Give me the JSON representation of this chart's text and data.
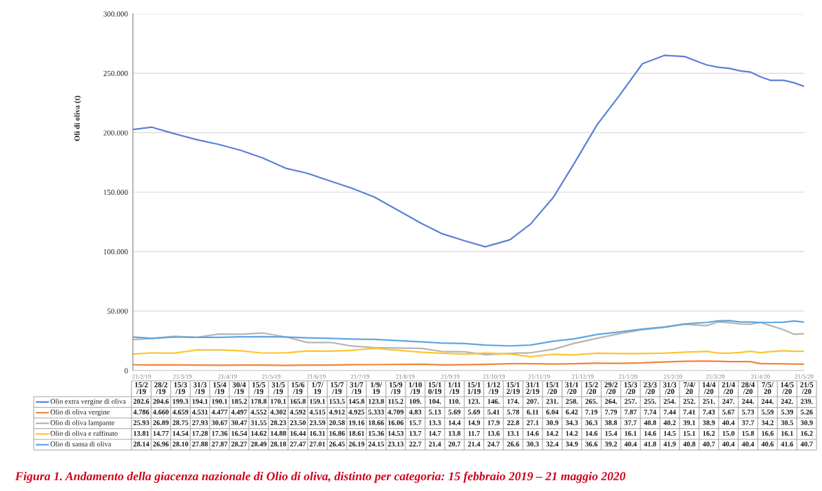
{
  "chart_data": [
    {
      "type": "line",
      "ylabel": "Oli di oliva (t)",
      "annotations": [
        "Figura 1. Andamento della giacenza nazionale di Olio di oliva, distinto per categoria: 15 febbraio 2019 – 21 maggio 2020"
      ],
      "x": [
        "2019-02-15",
        "2019-02-28",
        "2019-03-15",
        "2019-03-31",
        "2019-04-15",
        "2019-04-30",
        "2019-05-15",
        "2019-05-31",
        "2019-06-15",
        "2019-07-01",
        "2019-07-15",
        "2019-07-31",
        "2019-09-01",
        "2019-09-15",
        "2019-10-01",
        "2019-10-15",
        "2019-11-01",
        "2019-11-15",
        "2019-12-01",
        "2019-12-15",
        "2019-12-31",
        "2020-01-15",
        "2020-01-31",
        "2020-02-15",
        "2020-02-29",
        "2020-03-15",
        "2020-03-23",
        "2020-03-31",
        "2020-04-07",
        "2020-04-14",
        "2020-04-21",
        "2020-04-28",
        "2020-05-07",
        "2020-05-14",
        "2020-05-21"
      ],
      "xlim": [
        "2019-02-15",
        "2020-05-21"
      ],
      "xticks": [
        {
          "value": "2019-02-21",
          "label": "21/2/19"
        },
        {
          "value": "2019-03-21",
          "label": "21/3/19"
        },
        {
          "value": "2019-04-21",
          "label": "21/4/19"
        },
        {
          "value": "2019-05-21",
          "label": "21/5/19"
        },
        {
          "value": "2019-06-21",
          "label": "21/6/19"
        },
        {
          "value": "2019-07-21",
          "label": "21/7/19"
        },
        {
          "value": "2019-08-21",
          "label": "21/8/19"
        },
        {
          "value": "2019-09-21",
          "label": "21/9/19"
        },
        {
          "value": "2019-10-21",
          "label": "21/10/19"
        },
        {
          "value": "2019-11-21",
          "label": "21/11/19"
        },
        {
          "value": "2019-12-21",
          "label": "21/12/19"
        },
        {
          "value": "2020-01-21",
          "label": "21/1/20"
        },
        {
          "value": "2020-02-21",
          "label": "21/2/20"
        },
        {
          "value": "2020-03-21",
          "label": "21/3/20"
        },
        {
          "value": "2020-04-21",
          "label": "21/4/20"
        },
        {
          "value": "2020-05-21",
          "label": "21/5/20"
        }
      ],
      "ylim": [
        0,
        300
      ],
      "yticks": [
        0,
        {
          "value": 50,
          "label": "50.000"
        },
        {
          "value": 100,
          "label": "100.000"
        },
        {
          "value": 150,
          "label": "150.000"
        },
        {
          "value": 200,
          "label": "200.000"
        },
        {
          "value": 250,
          "label": "250.000"
        },
        {
          "value": 300,
          "label": "300.000"
        }
      ],
      "grid": "y",
      "series": [
        {
          "color": "#5b7fd8",
          "values": [
            202.6,
            204.6,
            199.3,
            194.1,
            190.1,
            185.2,
            178.8,
            170.1,
            165.8,
            159.1,
            153.5,
            145.8,
            123.8,
            115.2,
            109,
            104,
            110,
            123,
            146,
            174,
            207,
            231,
            258,
            265,
            264,
            257,
            255,
            254,
            252,
            251,
            247,
            244,
            244,
            242,
            239
          ]
        },
        {
          "color": "#f2853a",
          "values": [
            4.786,
            4.66,
            4.659,
            4.531,
            4.477,
            4.497,
            4.552,
            4.302,
            4.592,
            4.515,
            4.912,
            4.925,
            5.333,
            4.709,
            4.83,
            5.13,
            5.69,
            5.69,
            5.41,
            5.78,
            6.11,
            6.04,
            6.42,
            7.19,
            7.79,
            7.87,
            7.74,
            7.44,
            7.41,
            7.43,
            5.67,
            5.73,
            5.59,
            5.39,
            5.26
          ]
        },
        {
          "color": "#b5b5b5",
          "values": [
            25.93,
            26.89,
            28.75,
            27.93,
            30.67,
            30.47,
            31.55,
            28.23,
            23.5,
            23.59,
            20.58,
            19.16,
            18.66,
            16.06,
            15.7,
            13.3,
            14.4,
            14.9,
            17.9,
            22.8,
            27.1,
            30.9,
            34.3,
            36.3,
            38.8,
            37.7,
            40.8,
            40.2,
            39.1,
            38.9,
            40.4,
            37.7,
            34.2,
            30.5,
            30.9
          ]
        },
        {
          "color": "#fbc532",
          "values": [
            13.81,
            14.77,
            14.54,
            17.28,
            17.36,
            16.54,
            14.62,
            14.88,
            16.44,
            16.31,
            16.86,
            18.61,
            15.36,
            14.53,
            13.7,
            14.7,
            13.8,
            11.7,
            13.6,
            13.1,
            14.6,
            14.2,
            14.2,
            14.6,
            15.4,
            16.1,
            14.6,
            14.5,
            15.1,
            16.2,
            15.0,
            15.8,
            16.6,
            16.1,
            16.2
          ]
        },
        {
          "color": "#5ea6e2",
          "values": [
            28.14,
            26.96,
            28.1,
            27.88,
            27.87,
            28.27,
            28.49,
            28.18,
            27.47,
            27.01,
            26.45,
            26.19,
            24.15,
            23.13,
            22.7,
            21.4,
            20.7,
            21.4,
            24.7,
            26.6,
            30.3,
            32.4,
            34.9,
            36.6,
            39.2,
            40.4,
            41.8,
            41.9,
            40.8,
            40.7,
            40.4,
            40.4,
            40.6,
            41.6,
            40.7
          ]
        }
      ]
    },
    {
      "type": "other",
      "legend": "left",
      "categories": [
        "15/2/19",
        "28/2/19",
        "15/3/19",
        "31/3/19",
        "15/4/19",
        "30/4/19",
        "15/5/19",
        "31/5/19",
        "15/6/19",
        "1/7/19",
        "15/7/19",
        "31/7/19",
        "1/9/19",
        "15/9/19",
        "1/10/19",
        "15/10/19",
        "1/11/19",
        "15/11/19",
        "1/12/19",
        "15/12/19",
        "31/12/19",
        "15/1/20",
        "31/1/20",
        "15/2/20",
        "29/2/20",
        "15/3/20",
        "23/3/20",
        "31/3/20",
        "7/4/20",
        "14/4/20",
        "21/4/20",
        "28/4/20",
        "7/5/20",
        "14/5/20",
        "21/5/20"
      ],
      "series": [
        {
          "name": "Olio extra vergine di oliva",
          "color": "#5b7fd8",
          "values": [
            202.6,
            204.6,
            199.3,
            194.1,
            190.1,
            185.2,
            178.8,
            170.1,
            165.8,
            159.1,
            153.5,
            145.8,
            123.8,
            115.2,
            109,
            104,
            110,
            123,
            146,
            174,
            207,
            231,
            258,
            265,
            264,
            257,
            255,
            254,
            252,
            251,
            247,
            244,
            244,
            242,
            239
          ],
          "value_labels": [
            "202.6",
            "204.6",
            "199.3",
            "194.1",
            "190.1",
            "185.2",
            "178.8",
            "170.1",
            "165.8",
            "159.1",
            "153.5",
            "145.8",
            "123.8",
            "115.2",
            "109.",
            "104.",
            "110.",
            "123.",
            "146.",
            "174.",
            "207.",
            "231.",
            "258.",
            "265.",
            "264.",
            "257.",
            "255.",
            "254.",
            "252.",
            "251.",
            "247.",
            "244.",
            "244.",
            "242.",
            "239."
          ]
        },
        {
          "name": "Olio di oliva vergine",
          "color": "#f2853a",
          "values": [
            4.786,
            4.66,
            4.659,
            4.531,
            4.477,
            4.497,
            4.552,
            4.302,
            4.592,
            4.515,
            4.912,
            4.925,
            5.333,
            4.709,
            4.83,
            5.13,
            5.69,
            5.69,
            5.41,
            5.78,
            6.11,
            6.04,
            6.42,
            7.19,
            7.79,
            7.87,
            7.74,
            7.44,
            7.41,
            7.43,
            5.67,
            5.73,
            5.59,
            5.39,
            5.26
          ],
          "value_labels": [
            "4.786",
            "4.660",
            "4.659",
            "4.531",
            "4.477",
            "4.497",
            "4.552",
            "4.302",
            "4.592",
            "4.515",
            "4.912",
            "4.925",
            "5.333",
            "4.709",
            "4.83",
            "5.13",
            "5.69",
            "5.69",
            "5.41",
            "5.78",
            "6.11",
            "6.04",
            "6.42",
            "7.19",
            "7.79",
            "7.87",
            "7.74",
            "7.44",
            "7.41",
            "7.43",
            "5.67",
            "5.73",
            "5.59",
            "5.39",
            "5.26"
          ]
        },
        {
          "name": "Olio di oliva lampante",
          "color": "#b5b5b5",
          "values": [
            25.93,
            26.89,
            28.75,
            27.93,
            30.67,
            30.47,
            31.55,
            28.23,
            23.5,
            23.59,
            20.58,
            19.16,
            18.66,
            16.06,
            15.7,
            13.3,
            14.4,
            14.9,
            17.9,
            22.8,
            27.1,
            30.9,
            34.3,
            36.3,
            38.8,
            37.7,
            40.8,
            40.2,
            39.1,
            38.9,
            40.4,
            37.7,
            34.2,
            30.5,
            30.9
          ],
          "value_labels": [
            "25.93",
            "26.89",
            "28.75",
            "27.93",
            "30.67",
            "30.47",
            "31.55",
            "28.23",
            "23.50",
            "23.59",
            "20.58",
            "19.16",
            "18.66",
            "16.06",
            "15.7",
            "13.3",
            "14.4",
            "14.9",
            "17.9",
            "22.8",
            "27.1",
            "30.9",
            "34.3",
            "36.3",
            "38.8",
            "37.7",
            "40.8",
            "40.2",
            "39.1",
            "38.9",
            "40.4",
            "37.7",
            "34.2",
            "30.5",
            "30.9"
          ]
        },
        {
          "name": "Olio di oliva e raffinato",
          "color": "#fbc532",
          "values": [
            13.81,
            14.77,
            14.54,
            17.28,
            17.36,
            16.54,
            14.62,
            14.88,
            16.44,
            16.31,
            16.86,
            18.61,
            15.36,
            14.53,
            13.7,
            14.7,
            13.8,
            11.7,
            13.6,
            13.1,
            14.6,
            14.2,
            14.2,
            14.6,
            15.4,
            16.1,
            14.6,
            14.5,
            15.1,
            16.2,
            15.0,
            15.8,
            16.6,
            16.1,
            16.2
          ],
          "value_labels": [
            "13.81",
            "14.77",
            "14.54",
            "17.28",
            "17.36",
            "16.54",
            "14.62",
            "14.88",
            "16.44",
            "16.31",
            "16.86",
            "18.61",
            "15.36",
            "14.53",
            "13.7",
            "14.7",
            "13.8",
            "11.7",
            "13.6",
            "13.1",
            "14.6",
            "14.2",
            "14.2",
            "14.6",
            "15.4",
            "16.1",
            "14.6",
            "14.5",
            "15.1",
            "16.2",
            "15.0",
            "15.8",
            "16.6",
            "16.1",
            "16.2"
          ]
        },
        {
          "name": "Olio di sansa di oliva",
          "color": "#5ea6e2",
          "values": [
            28.14,
            26.96,
            28.1,
            27.88,
            27.87,
            28.27,
            28.49,
            28.18,
            27.47,
            27.01,
            26.45,
            26.19,
            24.15,
            23.13,
            22.7,
            21.4,
            20.7,
            21.4,
            24.7,
            26.6,
            30.3,
            32.4,
            34.9,
            36.6,
            39.2,
            40.4,
            41.8,
            41.9,
            40.8,
            40.7,
            40.4,
            40.4,
            40.6,
            41.6,
            40.7
          ],
          "value_labels": [
            "28.14",
            "26.96",
            "28.10",
            "27.88",
            "27.87",
            "28.27",
            "28.49",
            "28.18",
            "27.47",
            "27.01",
            "26.45",
            "26.19",
            "24.15",
            "23.13",
            "22.7",
            "21.4",
            "20.7",
            "21.4",
            "24.7",
            "26.6",
            "30.3",
            "32.4",
            "34.9",
            "36.6",
            "39.2",
            "40.4",
            "41.8",
            "41.9",
            "40.8",
            "40.7",
            "40.4",
            "40.4",
            "40.6",
            "41.6",
            "40.7"
          ]
        }
      ]
    }
  ]
}
